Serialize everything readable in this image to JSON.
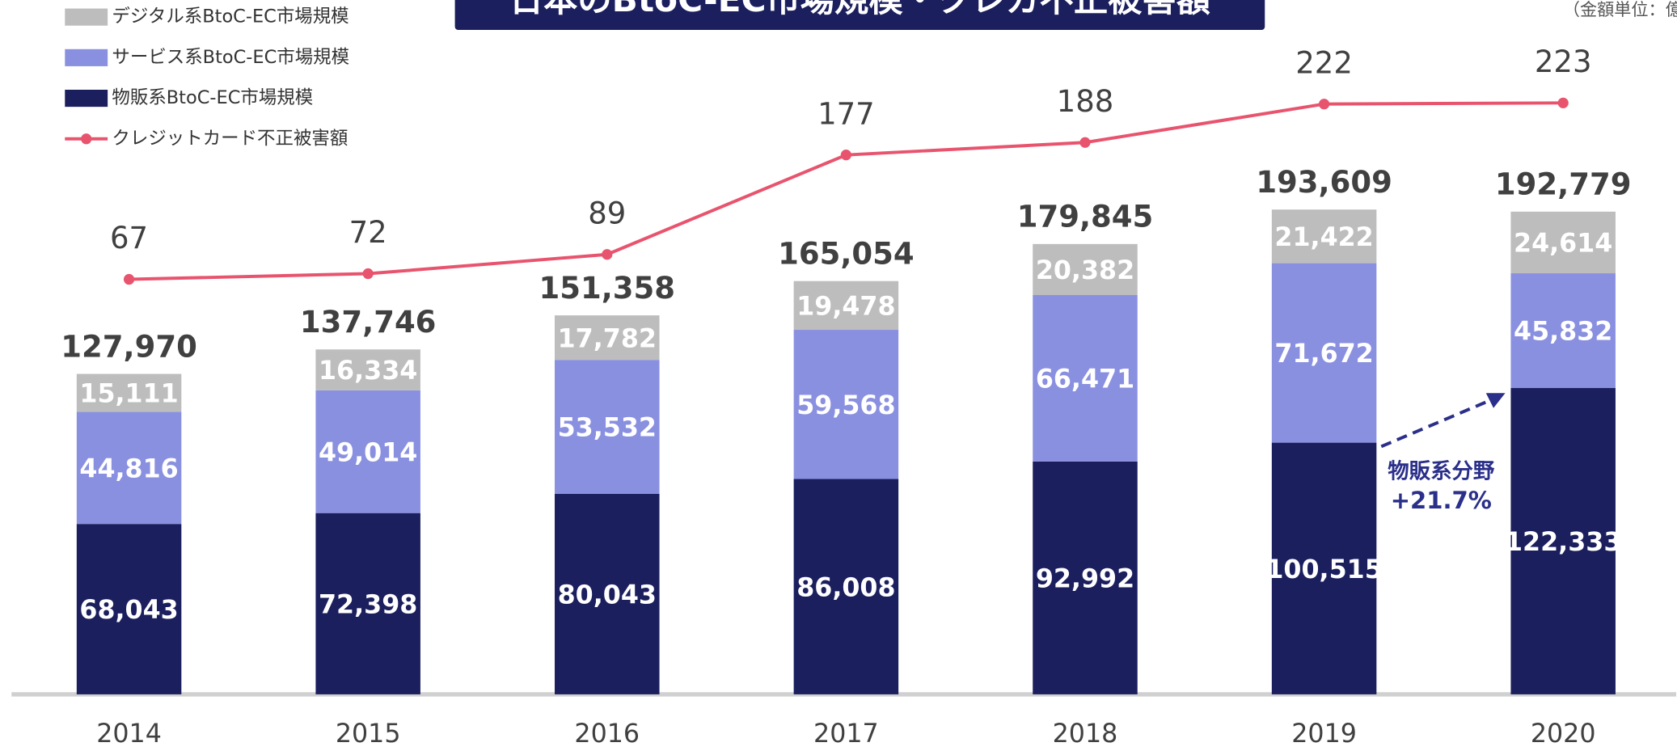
{
  "chart_data": {
    "type": "bar-line",
    "title": "日本のBtoC-EC市場規模・クレカ不正被害額",
    "unit_note": "（金額単位：億円）",
    "categories": [
      "2014",
      "2015",
      "2016",
      "2017",
      "2018",
      "2019",
      "2020"
    ],
    "stacked": true,
    "series": [
      {
        "name": "物販系BtoC-EC市場規模",
        "color": "#1b1f5e",
        "values": [
          68043,
          72398,
          80043,
          86008,
          92992,
          100515,
          122333
        ],
        "value_labels": [
          "68,043",
          "72,398",
          "80,043",
          "86,008",
          "92,992",
          "100,515",
          "122,333"
        ]
      },
      {
        "name": "サービス系BtoC-EC市場規模",
        "color": "#8a90e0",
        "values": [
          44816,
          49014,
          53532,
          59568,
          66471,
          71672,
          45832
        ],
        "value_labels": [
          "44,816",
          "49,014",
          "53,532",
          "59,568",
          "66,471",
          "71,672",
          "45,832"
        ]
      },
      {
        "name": "デジタル系BtoC-EC市場規模",
        "color": "#bdbdbd",
        "values": [
          15111,
          16334,
          17782,
          19478,
          20382,
          21422,
          24614
        ],
        "value_labels": [
          "15,111",
          "16,334",
          "17,782",
          "19,478",
          "20,382",
          "21,422",
          "24,614"
        ]
      },
      {
        "name": "クレジットカード不正被害額",
        "color": "#e8546e",
        "type": "line",
        "axis": "y2",
        "values": [
          67,
          72,
          89,
          177,
          188,
          222,
          223
        ]
      }
    ],
    "totals": [
      127970,
      137746,
      151358,
      165054,
      179845,
      193609,
      192779
    ],
    "total_labels": [
      "127,970",
      "137,746",
      "151,358",
      "165,054",
      "179,845",
      "193,609",
      "192,779"
    ],
    "ylim": [
      0,
      277300
    ],
    "y2lim": [
      -300,
      314
    ],
    "annotation": {
      "lines": [
        "物販系分野",
        "+21.7%"
      ]
    }
  }
}
